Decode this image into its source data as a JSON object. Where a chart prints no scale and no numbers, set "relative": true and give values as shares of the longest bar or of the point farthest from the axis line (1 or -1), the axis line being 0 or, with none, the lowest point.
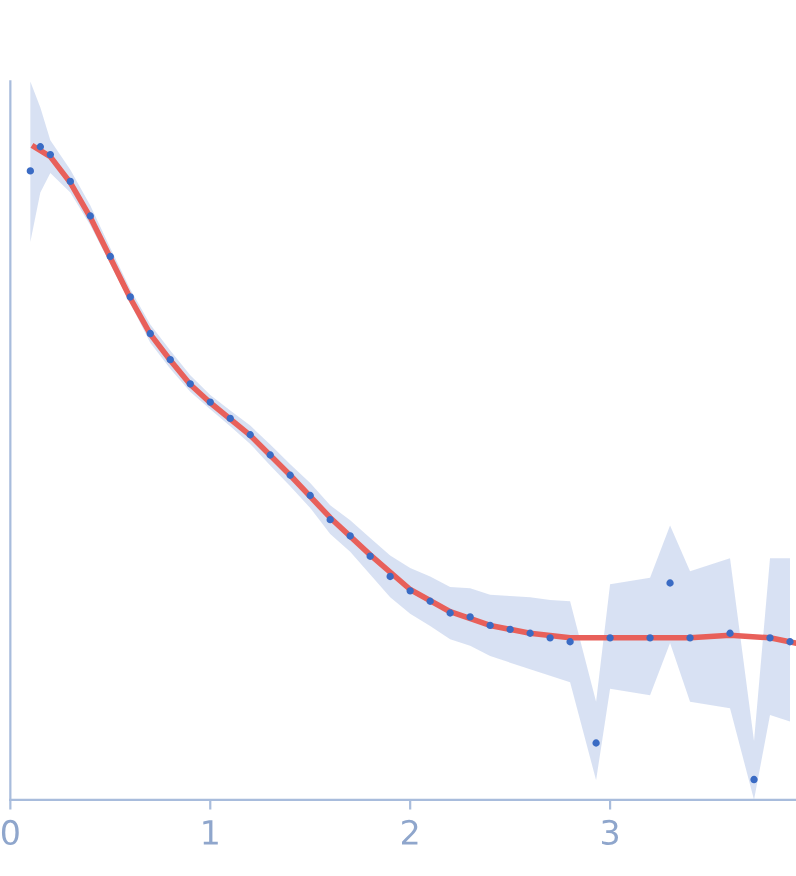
{
  "chart_data": {
    "type": "scatter",
    "relative": true,
    "xlim": [
      0,
      3.93
    ],
    "xticks": [
      0,
      1,
      2,
      3
    ],
    "grid": false,
    "legend": false,
    "series": [
      {
        "color": "#3a6bc4",
        "marker": "circle",
        "x": [
          0.1,
          0.15,
          0.2,
          0.3,
          0.4,
          0.5,
          0.6,
          0.7,
          0.8,
          0.9,
          1.0,
          1.1,
          1.2,
          1.3,
          1.4,
          1.5,
          1.6,
          1.7,
          1.8,
          1.9,
          2.0,
          2.1,
          2.2,
          2.3,
          2.4,
          2.5,
          2.6,
          2.7,
          2.8,
          2.93,
          3.0,
          3.2,
          3.3,
          3.4,
          3.6,
          3.72,
          3.8,
          3.9
        ],
        "values": [
          0.963,
          1.0,
          0.988,
          0.947,
          0.894,
          0.832,
          0.77,
          0.714,
          0.674,
          0.637,
          0.609,
          0.584,
          0.559,
          0.528,
          0.497,
          0.466,
          0.429,
          0.404,
          0.373,
          0.342,
          0.32,
          0.304,
          0.286,
          0.28,
          0.267,
          0.261,
          0.255,
          0.248,
          0.242,
          0.087,
          0.248,
          0.248,
          0.332,
          0.248,
          0.255,
          0.031,
          0.248,
          0.242
        ],
        "lower": [
          0.854,
          0.93,
          0.96,
          0.93,
          0.88,
          0.82,
          0.76,
          0.7,
          0.66,
          0.625,
          0.598,
          0.572,
          0.545,
          0.512,
          0.48,
          0.447,
          0.407,
          0.38,
          0.345,
          0.31,
          0.285,
          0.266,
          0.246,
          0.236,
          0.22,
          0.21,
          0.2,
          0.19,
          0.18,
          0.03,
          0.17,
          0.16,
          0.24,
          0.15,
          0.14,
          0.0,
          0.13,
          0.12
        ],
        "upper": [
          1.1,
          1.06,
          1.01,
          0.965,
          0.91,
          0.845,
          0.782,
          0.728,
          0.688,
          0.65,
          0.62,
          0.596,
          0.573,
          0.544,
          0.514,
          0.485,
          0.451,
          0.428,
          0.401,
          0.374,
          0.355,
          0.342,
          0.326,
          0.324,
          0.314,
          0.312,
          0.31,
          0.306,
          0.304,
          0.15,
          0.33,
          0.34,
          0.42,
          0.35,
          0.37,
          0.09,
          0.37,
          0.37
        ]
      },
      {
        "type": "line",
        "color": "#e8605a",
        "line_style": "solid",
        "marker": "none",
        "x": [
          0.12,
          0.2,
          0.3,
          0.4,
          0.5,
          0.6,
          0.7,
          0.8,
          0.9,
          1.0,
          1.2,
          1.4,
          1.6,
          1.8,
          2.0,
          2.2,
          2.4,
          2.6,
          2.8,
          3.0,
          3.2,
          3.4,
          3.6,
          3.8,
          3.93
        ],
        "values": [
          1.0,
          0.985,
          0.945,
          0.892,
          0.83,
          0.768,
          0.713,
          0.673,
          0.636,
          0.608,
          0.558,
          0.497,
          0.432,
          0.375,
          0.322,
          0.288,
          0.267,
          0.255,
          0.248,
          0.248,
          0.248,
          0.248,
          0.252,
          0.248,
          0.24
        ]
      }
    ]
  }
}
